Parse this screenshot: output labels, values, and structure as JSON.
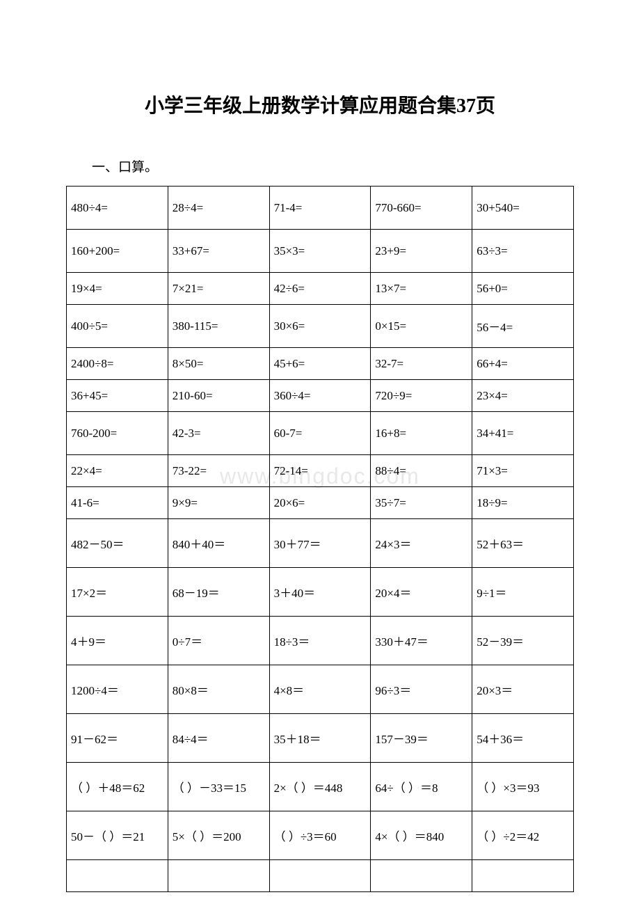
{
  "title": "小学三年级上册数学计算应用题合集37页",
  "section_label": "一、口算。",
  "watermark": "www.bingdoc.com",
  "table": {
    "columns": 5,
    "border_color": "#000000",
    "text_color": "#000000",
    "font_size": 17,
    "rows": [
      {
        "class": "tall",
        "cells": [
          "480÷4=",
          "28÷4=",
          "71-4=",
          "770-660=",
          "30+540="
        ]
      },
      {
        "class": "tall",
        "cells": [
          "160+200=",
          "33+67=",
          "35×3=",
          "23+9=",
          "63÷3="
        ]
      },
      {
        "class": "",
        "cells": [
          "19×4=",
          "7×21=",
          "42÷6=",
          "13×7=",
          "56+0="
        ]
      },
      {
        "class": "tall",
        "cells": [
          "400÷5=",
          "380-115=",
          "30×6=",
          "0×15=",
          "56－4="
        ]
      },
      {
        "class": "",
        "cells": [
          "2400÷8=",
          "8×50=",
          "45+6=",
          "32-7=",
          "66+4="
        ]
      },
      {
        "class": "",
        "cells": [
          "36+45=",
          "210-60=",
          "360÷4=",
          "720÷9=",
          "23×4="
        ]
      },
      {
        "class": "tall",
        "cells": [
          "760-200=",
          "42-3=",
          "60-7=",
          "16+8=",
          "34+41="
        ]
      },
      {
        "class": "",
        "cells": [
          "22×4=",
          "73-22=",
          "72-14=",
          "88÷4=",
          "71×3="
        ]
      },
      {
        "class": "",
        "cells": [
          "41-6=",
          "9×9=",
          "20×6=",
          "35÷7=",
          "18÷9="
        ]
      },
      {
        "class": "taller",
        "cells": [
          "482－50＝",
          "840＋40＝",
          "30＋77＝",
          "24×3＝",
          "52＋63＝"
        ]
      },
      {
        "class": "taller",
        "cells": [
          "17×2＝",
          "68－19＝",
          "3＋40＝",
          "20×4＝",
          "9÷1＝"
        ]
      },
      {
        "class": "taller",
        "cells": [
          "4＋9＝",
          "0÷7＝",
          "18÷3＝",
          "330＋47＝",
          "52－39＝"
        ]
      },
      {
        "class": "taller",
        "cells": [
          "1200÷4＝",
          "80×8＝",
          "4×8＝",
          "96÷3＝",
          "20×3＝"
        ]
      },
      {
        "class": "taller",
        "cells": [
          "91－62＝",
          "84÷4＝",
          "35＋18＝",
          "157－39＝",
          "54＋36＝"
        ]
      },
      {
        "class": "taller",
        "cells": [
          "（ ）＋48＝62",
          "（ ）－33＝15",
          "2×（ ）＝448",
          "64÷（ ）＝8",
          "（ ）×3＝93"
        ]
      },
      {
        "class": "taller",
        "cells": [
          "50－（ ）＝21",
          "5×（ ）＝200",
          "（ ）÷3＝60",
          "4×（ ）＝840",
          "（ ）÷2＝42"
        ]
      },
      {
        "class": "",
        "cells": [
          "",
          "",
          "",
          "",
          ""
        ]
      }
    ]
  }
}
